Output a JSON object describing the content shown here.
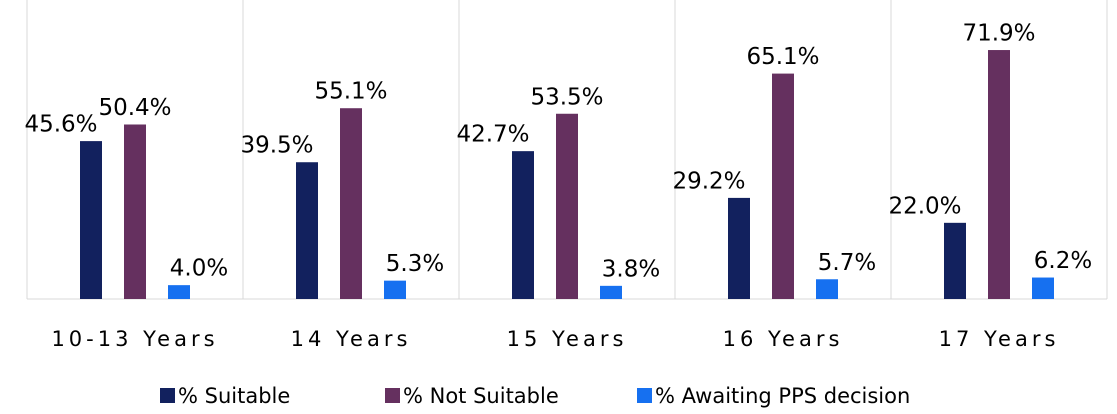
{
  "chart_data": {
    "type": "bar",
    "categories": [
      "10-13 Years",
      "14 Years",
      "15 Years",
      "16 Years",
      "17 Years"
    ],
    "series": [
      {
        "name": "% Suitable",
        "color": "#12215e",
        "values": [
          45.6,
          39.5,
          42.7,
          29.2,
          22.0
        ],
        "value_labels": [
          "45.6%",
          "39.5%",
          "42.7%",
          "29.2%",
          "22.0%"
        ]
      },
      {
        "name": "% Not Suitable",
        "color": "#65305f",
        "values": [
          50.4,
          55.1,
          53.5,
          65.1,
          71.9
        ],
        "value_labels": [
          "50.4%",
          "55.1%",
          "53.5%",
          "65.1%",
          "71.9%"
        ]
      },
      {
        "name": "% Awaiting PPS decision",
        "color": "#1670f0",
        "values": [
          4.0,
          5.3,
          3.8,
          5.7,
          6.2
        ],
        "value_labels": [
          "4.0%",
          "5.3%",
          "3.8%",
          "5.7%",
          "6.2%"
        ]
      }
    ],
    "ylim": [
      0,
      80
    ],
    "legend": "bottom"
  }
}
